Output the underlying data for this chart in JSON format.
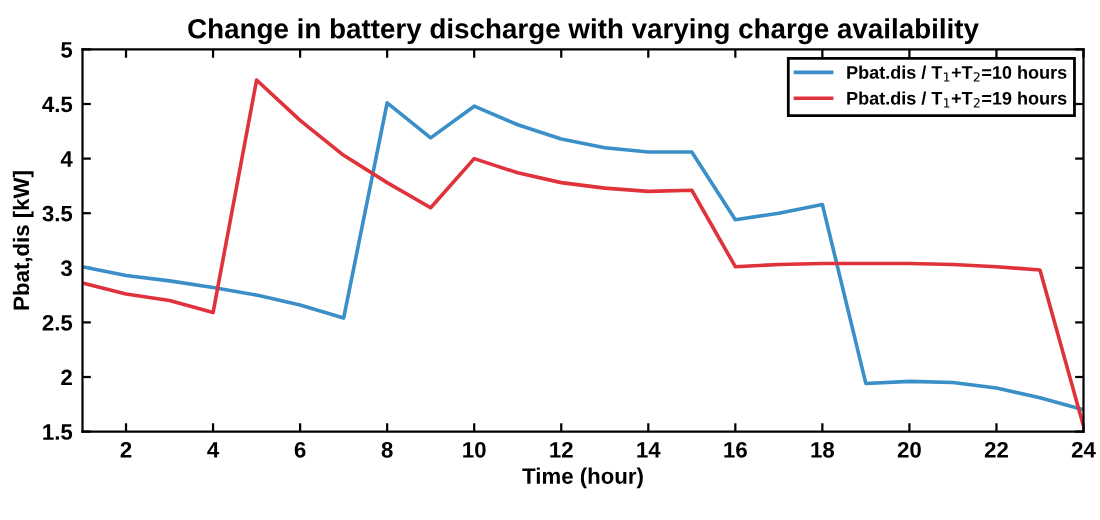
{
  "chart_data": {
    "type": "line",
    "title": "Change in battery discharge with varying charge availability",
    "xlabel": "Time (hour)",
    "ylabel": "Pbat,dis [kW]",
    "x": [
      1,
      2,
      3,
      4,
      5,
      6,
      7,
      8,
      9,
      10,
      11,
      12,
      13,
      14,
      15,
      16,
      17,
      18,
      19,
      20,
      21,
      22,
      23,
      24
    ],
    "series": [
      {
        "name": "Pbat.dis / T$_{1}$+T$_{2}$=10 hours",
        "color": "#3a8fc8",
        "values": [
          3.01,
          2.93,
          2.88,
          2.82,
          2.75,
          2.66,
          2.54,
          4.51,
          4.19,
          4.48,
          4.31,
          4.18,
          4.1,
          4.06,
          4.06,
          3.44,
          3.5,
          3.58,
          1.94,
          1.96,
          1.95,
          1.9,
          1.81,
          1.7
        ]
      },
      {
        "name": "Pbat.dis / T$_{1}$+T$_{2}$=19 hours",
        "color": "#e0323a",
        "values": [
          2.86,
          2.76,
          2.7,
          2.59,
          4.72,
          4.35,
          4.03,
          3.78,
          3.55,
          4.0,
          3.87,
          3.78,
          3.73,
          3.7,
          3.71,
          3.01,
          3.03,
          3.04,
          3.04,
          3.04,
          3.03,
          3.01,
          2.98,
          1.55
        ]
      }
    ],
    "xlim": [
      1,
      24
    ],
    "xticks": [
      2,
      4,
      6,
      8,
      10,
      12,
      14,
      16,
      18,
      20,
      22,
      24
    ],
    "ylim": [
      1.5,
      5
    ],
    "yticks": [
      1.5,
      2,
      2.5,
      3,
      3.5,
      4,
      4.5,
      5
    ],
    "legend": "top right",
    "grid": false,
    "marker": "none",
    "line_style": "solid"
  }
}
